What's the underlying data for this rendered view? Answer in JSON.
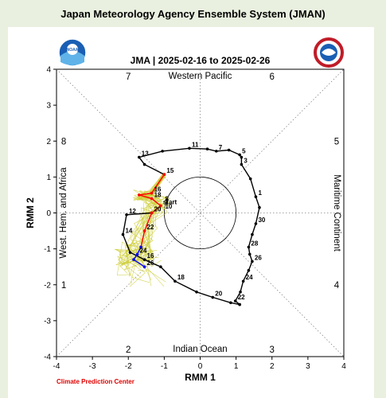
{
  "page": {
    "header": "Japan Meteorology Agency Ensemble System (JMAN)"
  },
  "logos": {
    "left": "noaa-logo",
    "right": "national-weather-service-logo",
    "noaa_text": "NOAA"
  },
  "footer": {
    "credit": "Climate Prediction Center"
  },
  "colors": {
    "observed": "#000000",
    "forecast_mean_early": "#ff0000",
    "forecast_mean_late": "#0000ff",
    "ensemble": "#cccc33",
    "credit": "#e00000"
  },
  "chart_data": {
    "type": "line",
    "title": "JMA | 2025-02-16 to 2025-02-26",
    "xlabel": "RMM 1",
    "ylabel": "RMM 2",
    "xlim": [
      -4,
      4
    ],
    "ylim": [
      -4,
      4
    ],
    "xticks": [
      "-4",
      "-3",
      "-2",
      "-1",
      "0",
      "1",
      "2",
      "3",
      "4"
    ],
    "yticks": [
      "-4",
      "-3",
      "-2",
      "-1",
      "0",
      "1",
      "2",
      "3",
      "4"
    ],
    "grid": "dotted diagonals and axes",
    "region_labels": {
      "top": "Western Pacific",
      "bottom": "Indian Ocean",
      "left": "West. Hem. and Africa",
      "right": "Maritime Continent"
    },
    "phase_numbers": [
      "1",
      "2",
      "3",
      "4",
      "5",
      "6",
      "7",
      "8"
    ],
    "unit_circle_radius": 1,
    "observed": [
      {
        "x": 1.1,
        "y": -2.55,
        "label": ""
      },
      {
        "x": 0.98,
        "y": -2.45,
        "label": "22"
      },
      {
        "x": 1.12,
        "y": -2.2,
        "label": ""
      },
      {
        "x": 1.2,
        "y": -1.9,
        "label": "24"
      },
      {
        "x": 1.35,
        "y": -1.6,
        "label": ""
      },
      {
        "x": 1.45,
        "y": -1.35,
        "label": "26"
      },
      {
        "x": 1.38,
        "y": -1.15,
        "label": ""
      },
      {
        "x": 1.35,
        "y": -0.95,
        "label": "28"
      },
      {
        "x": 1.45,
        "y": -0.6,
        "label": ""
      },
      {
        "x": 1.55,
        "y": -0.3,
        "label": "30"
      },
      {
        "x": 1.65,
        "y": 0.15,
        "label": ""
      },
      {
        "x": 1.55,
        "y": 0.45,
        "label": "1"
      },
      {
        "x": 1.4,
        "y": 0.95,
        "label": ""
      },
      {
        "x": 1.15,
        "y": 1.35,
        "label": "3"
      },
      {
        "x": 1.15,
        "y": 1.55,
        "label": ""
      },
      {
        "x": 1.1,
        "y": 1.62,
        "label": "5"
      },
      {
        "x": 0.8,
        "y": 1.75,
        "label": ""
      },
      {
        "x": 0.45,
        "y": 1.72,
        "label": "7"
      },
      {
        "x": 0.2,
        "y": 1.78,
        "label": ""
      },
      {
        "x": -0.3,
        "y": 1.8,
        "label": "11"
      },
      {
        "x": -1.05,
        "y": 1.72,
        "label": ""
      },
      {
        "x": -1.7,
        "y": 1.55,
        "label": "13"
      },
      {
        "x": -1.55,
        "y": 1.35,
        "label": ""
      },
      {
        "x": -1.0,
        "y": 1.07,
        "label": "15"
      }
    ],
    "forecast_red": [
      {
        "x": -1.0,
        "y": 1.07
      },
      {
        "x": -1.35,
        "y": 0.55,
        "label": "16"
      },
      {
        "x": -1.7,
        "y": 0.5
      },
      {
        "x": -1.35,
        "y": 0.4,
        "label": "18"
      },
      {
        "x": -1.1,
        "y": 0.2,
        "label": "start"
      },
      {
        "x": -1.35,
        "y": 0.0,
        "label": "20"
      },
      {
        "x": -1.55,
        "y": -0.5,
        "label": "22"
      },
      {
        "x": -1.65,
        "y": -0.95
      }
    ],
    "forecast_blue": [
      {
        "x": -1.65,
        "y": -0.95
      },
      {
        "x": -1.75,
        "y": -1.15,
        "label": "24"
      },
      {
        "x": -1.85,
        "y": -1.3
      },
      {
        "x": -1.55,
        "y": -1.5,
        "label": "26"
      }
    ],
    "observed_tail": [
      {
        "x": -1.55,
        "y": -1.3,
        "label": "16"
      },
      {
        "x": -1.1,
        "y": -1.5
      },
      {
        "x": -0.7,
        "y": -1.9,
        "label": "18"
      },
      {
        "x": -0.1,
        "y": -2.2
      },
      {
        "x": 0.35,
        "y": -2.35,
        "label": "20"
      },
      {
        "x": 0.85,
        "y": -2.5
      },
      {
        "x": 1.1,
        "y": -2.55
      }
    ],
    "observed_tail2": [
      {
        "x": -1.35,
        "y": 0.0,
        "label": ""
      },
      {
        "x": -2.05,
        "y": -0.05,
        "label": "12"
      },
      {
        "x": -2.15,
        "y": -0.6,
        "label": "14"
      },
      {
        "x": -1.95,
        "y": -1.1,
        "label": ""
      },
      {
        "x": -1.55,
        "y": -1.3,
        "label": ""
      }
    ],
    "extra_labels": [
      {
        "x": -1.02,
        "y": 0.33,
        "label": "8"
      },
      {
        "x": -1.02,
        "y": 0.25,
        "label": "7"
      },
      {
        "x": -1.02,
        "y": 0.12,
        "label": "10"
      }
    ]
  }
}
